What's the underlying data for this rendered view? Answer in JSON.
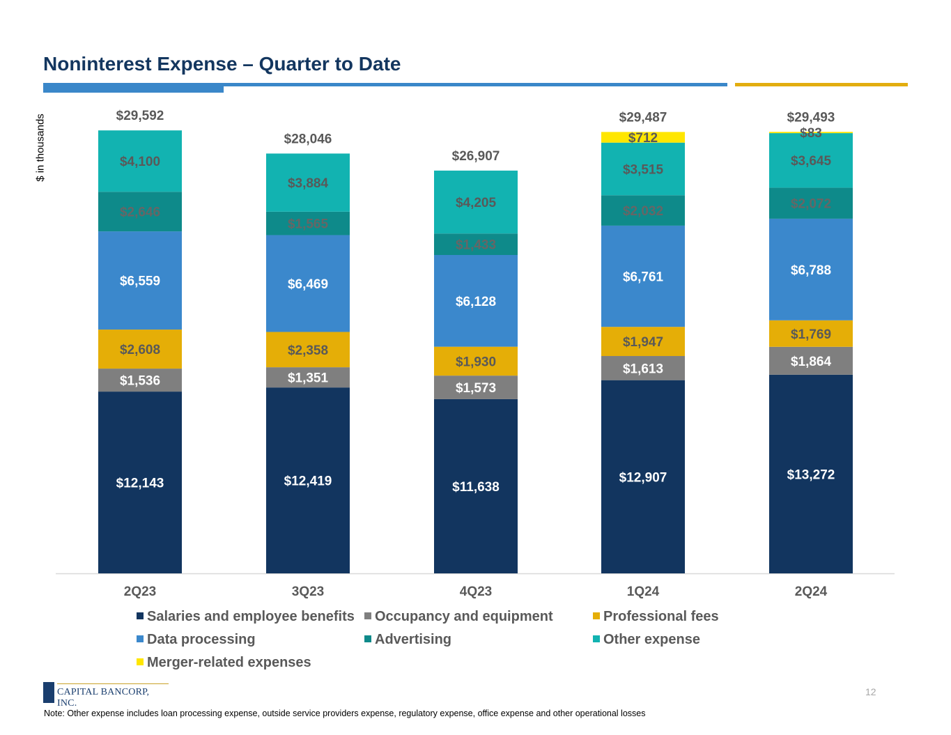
{
  "title": "Noninterest Expense – Quarter to Date",
  "page_number": "12",
  "note": "Note: Other expense includes loan processing expense, outside service providers expense, regulatory expense, office expense and other operational losses",
  "logo": {
    "text": "CAPITAL BANCORP, INC."
  },
  "colors": {
    "title": "#13365f",
    "rule_blue": "#3a87c9",
    "rule_gold": "#e2ad0f"
  },
  "chart_data": {
    "type": "bar",
    "stacked": true,
    "title": "Noninterest Expense – Quarter to Date",
    "ylabel": "$ in thousands",
    "xlabel": "",
    "categories": [
      "2Q23",
      "3Q23",
      "4Q23",
      "1Q24",
      "2Q24"
    ],
    "series": [
      {
        "name": "Salaries and employee benefits",
        "color": "#12355f",
        "label_color": "#ffffff",
        "values": [
          12143,
          12419,
          11638,
          12907,
          13272
        ],
        "labels": [
          "$12,143",
          "$12,419",
          "$11,638",
          "$12,907",
          "$13,272"
        ]
      },
      {
        "name": "Occupancy and equipment",
        "color": "#7f7f7f",
        "label_color": "#ffffff",
        "values": [
          1536,
          1351,
          1573,
          1613,
          1864
        ],
        "labels": [
          "$1,536",
          "$1,351",
          "$1,573",
          "$1,613",
          "$1,864"
        ]
      },
      {
        "name": "Professional fees",
        "color": "#e5ae07",
        "label_color": "#595959",
        "values": [
          2608,
          2358,
          1930,
          1947,
          1769
        ],
        "labels": [
          "$2,608",
          "$2,358",
          "$1,930",
          "$1,947",
          "$1,769"
        ]
      },
      {
        "name": "Data processing",
        "color": "#3b88cc",
        "label_color": "#ffffff",
        "values": [
          6559,
          6469,
          6128,
          6761,
          6788
        ],
        "labels": [
          "$6,559",
          "$6,469",
          "$6,128",
          "$6,761",
          "$6,788"
        ]
      },
      {
        "name": "Advertising",
        "color": "#0e8a8a",
        "label_color": "#666666",
        "values": [
          2646,
          1565,
          1433,
          2032,
          2072
        ],
        "labels": [
          "$2,646",
          "$1,565",
          "$1,433",
          "$2,032",
          "$2,072"
        ]
      },
      {
        "name": "Other expense",
        "color": "#12b3b1",
        "label_color": "#595959",
        "values": [
          4100,
          3884,
          4205,
          3515,
          3645
        ],
        "labels": [
          "$4,100",
          "$3,884",
          "$4,205",
          "$3,515",
          "$3,645"
        ]
      },
      {
        "name": "Merger-related expenses",
        "color": "#ffe600",
        "label_color": "#595959",
        "values": [
          0,
          0,
          0,
          712,
          83
        ],
        "labels": [
          "",
          "",
          "",
          "$712",
          "$83"
        ]
      }
    ],
    "totals": [
      29592,
      28046,
      26907,
      29487,
      29493
    ],
    "total_labels": [
      "$29,592",
      "$28,046",
      "$26,907",
      "$29,487",
      "$29,493"
    ],
    "ylim": [
      0,
      29600
    ],
    "grid": false,
    "legend_position": "bottom"
  }
}
